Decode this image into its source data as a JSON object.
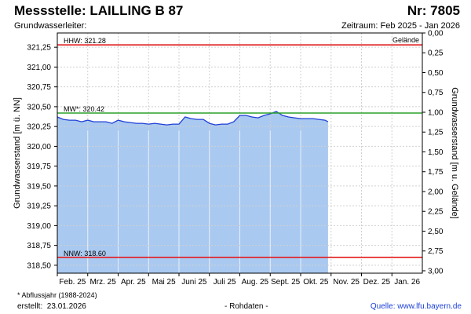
{
  "header": {
    "title": "Messstelle: LAILLING B 87",
    "number": "Nr: 7805",
    "aquifer": "Grundwasserleiter:",
    "period": "Zeitraum: Feb 2025 - Jan 2026"
  },
  "footer": {
    "footnote": "* Abflussjahr (1988-2024)",
    "created_label": "erstellt:",
    "created_date": "23.01.2026",
    "raw": "- Rohdaten -",
    "source_label": "Quelle:",
    "source_link": "www.lfu.bayern.de"
  },
  "chart_data": {
    "type": "area",
    "ylabel_left": "Grundwasserstand [m ü. NN]",
    "ylabel_right": "Grundwasserstand [m u. Gelände]",
    "ylim_left": [
      318.4,
      321.43
    ],
    "ylim_right": [
      3.0,
      -0.03
    ],
    "yticks_left": [
      "321,25",
      "321,00",
      "320,75",
      "320,50",
      "320,25",
      "320,00",
      "319,75",
      "319,50",
      "319,25",
      "319,00",
      "318,75",
      "318,50"
    ],
    "yticks_right": [
      "0,00",
      "0,25",
      "0,50",
      "0,75",
      "1,00",
      "1,25",
      "1,50",
      "1,75",
      "2,00",
      "2,25",
      "2,50",
      "2,75",
      "3,00"
    ],
    "months": [
      "Feb. 25",
      "Mrz. 25",
      "Apr. 25",
      "Mai 25",
      "Juni 25",
      "Juli 25",
      "Aug. 25",
      "Sept. 25",
      "Okt. 25",
      "Nov. 25",
      "Dez. 25",
      "Jan. 26"
    ],
    "grid": true,
    "ground_level": 321.43,
    "ground_label": "Gelände",
    "reference_lines": [
      {
        "label": "HHW: 321.28",
        "value": 321.28,
        "color": "#e31a1c"
      },
      {
        "label": "MW*: 320.42",
        "value": 320.42,
        "color": "#2ca02c"
      },
      {
        "label": "NNW: 318.60",
        "value": 318.6,
        "color": "#e31a1c"
      }
    ],
    "series": [
      {
        "fill": "#a9c9f0",
        "line": "#1f3fd6",
        "x": [
          0,
          0.2,
          0.4,
          0.6,
          0.8,
          1.0,
          1.2,
          1.4,
          1.6,
          1.8,
          2.0,
          2.2,
          2.4,
          2.6,
          2.8,
          3.0,
          3.2,
          3.4,
          3.6,
          3.8,
          4.0,
          4.2,
          4.4,
          4.6,
          4.8,
          5.0,
          5.2,
          5.4,
          5.6,
          5.8,
          6.0,
          6.2,
          6.4,
          6.6,
          6.8,
          7.0,
          7.2,
          7.4,
          7.6,
          7.8,
          8.0,
          8.2,
          8.4,
          8.6,
          8.8,
          8.9
        ],
        "y": [
          320.37,
          320.34,
          320.33,
          320.33,
          320.31,
          320.33,
          320.31,
          320.31,
          320.31,
          320.29,
          320.33,
          320.31,
          320.3,
          320.29,
          320.29,
          320.28,
          320.29,
          320.28,
          320.27,
          320.28,
          320.28,
          320.37,
          320.35,
          320.34,
          320.34,
          320.29,
          320.27,
          320.28,
          320.28,
          320.31,
          320.39,
          320.39,
          320.37,
          320.36,
          320.39,
          320.41,
          320.44,
          320.39,
          320.37,
          320.36,
          320.35,
          320.35,
          320.35,
          320.34,
          320.33,
          320.31
        ]
      }
    ]
  }
}
